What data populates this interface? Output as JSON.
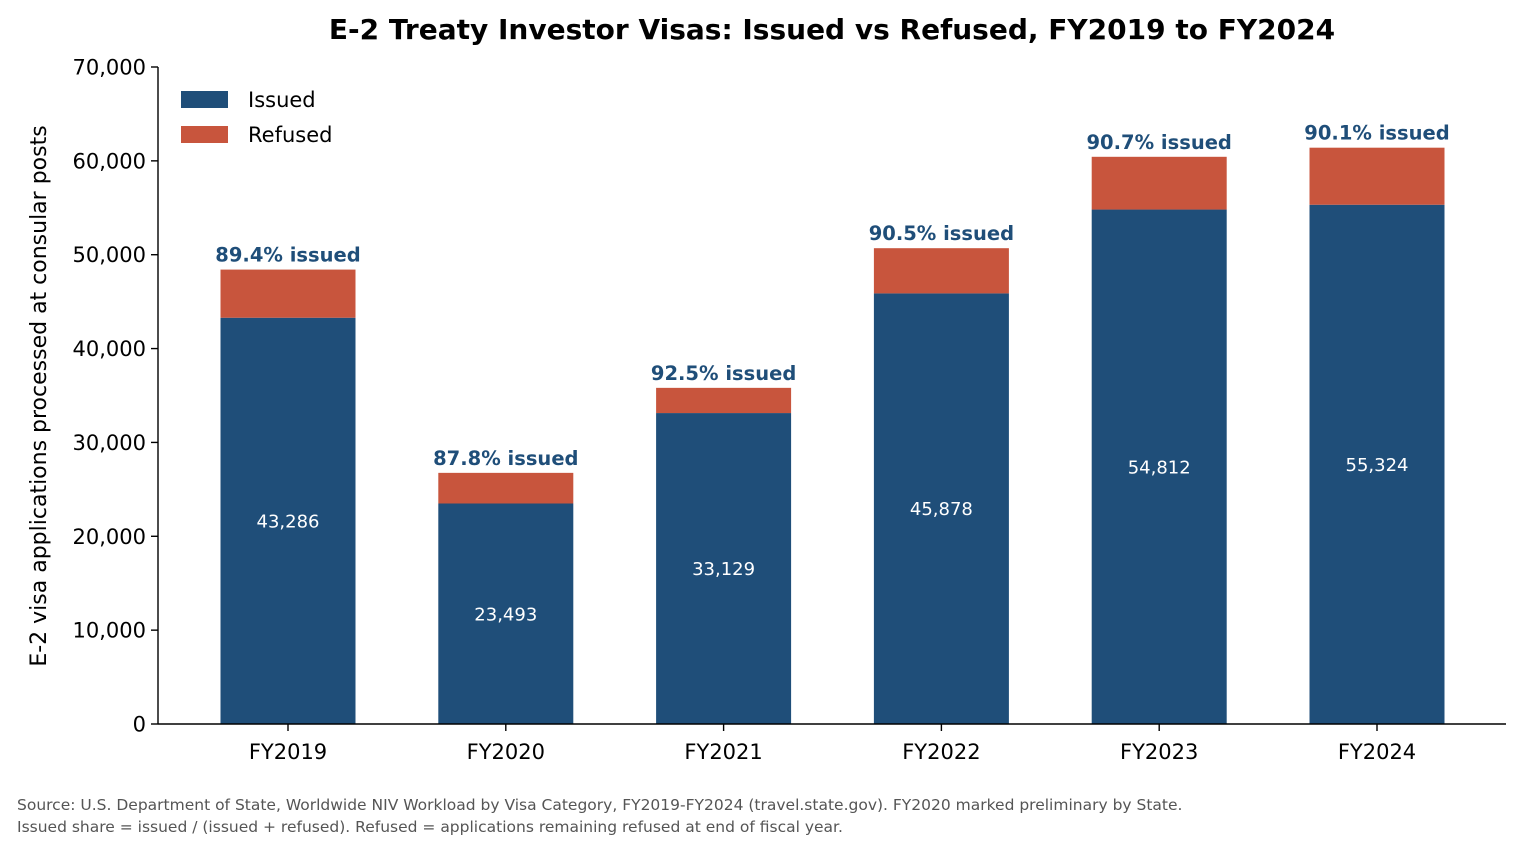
{
  "chart_data": {
    "type": "bar",
    "stacked": true,
    "title": "E-2 Treaty Investor Visas: Issued vs Refused, FY2019 to FY2024",
    "xlabel": "",
    "ylabel": "E-2 visa applications processed at consular posts",
    "categories": [
      "FY2019",
      "FY2020",
      "FY2021",
      "FY2022",
      "FY2023",
      "FY2024"
    ],
    "series": [
      {
        "name": "Issued",
        "color": "#1f4e79",
        "values": [
          43286,
          23493,
          33129,
          45878,
          54812,
          55324
        ],
        "labels": [
          "43,286",
          "23,493",
          "33,129",
          "45,878",
          "54,812",
          "55,324"
        ]
      },
      {
        "name": "Refused",
        "color": "#c8553d",
        "values": [
          5130,
          3265,
          2686,
          4817,
          5620,
          6079
        ]
      }
    ],
    "share_labels": [
      "89.4% issued",
      "87.8% issued",
      "92.5% issued",
      "90.5% issued",
      "90.7% issued",
      "90.1% issued"
    ],
    "share_label_color": "#1f4e79",
    "ylim": [
      0,
      70000
    ],
    "yticks": [
      0,
      10000,
      20000,
      30000,
      40000,
      50000,
      60000,
      70000
    ],
    "ytick_labels": [
      "0",
      "10,000",
      "20,000",
      "30,000",
      "40,000",
      "50,000",
      "60,000",
      "70,000"
    ],
    "grid": false,
    "legend": {
      "position": "top-left",
      "entries": [
        "Issued",
        "Refused"
      ]
    }
  },
  "footer": {
    "source_line1": "Source: U.S. Department of State, Worldwide NIV Workload by Visa Category, FY2019-FY2024 (travel.state.gov). FY2020 marked preliminary by State.",
    "source_line2": "Issued share = issued / (issued + refused). Refused = applications remaining refused at end of fiscal year."
  }
}
